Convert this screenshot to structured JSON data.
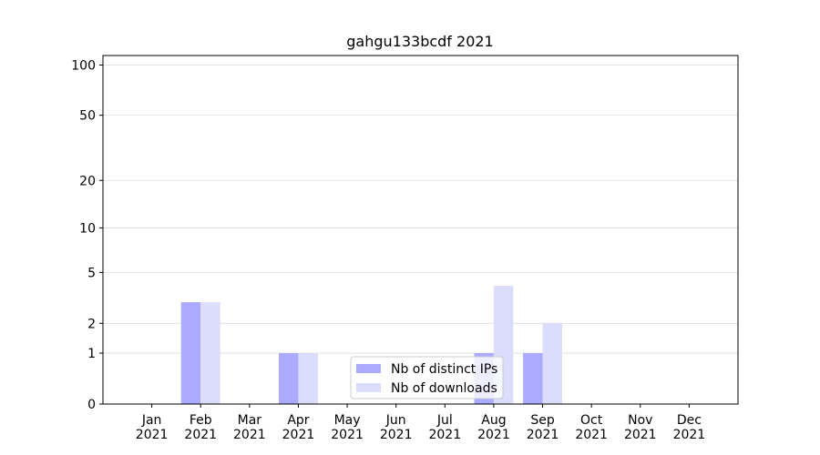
{
  "chart_data": {
    "type": "bar",
    "title": "gahgu133bcdf 2021",
    "categories": [
      "Jan 2021",
      "Feb 2021",
      "Mar 2021",
      "Apr 2021",
      "May 2021",
      "Jun 2021",
      "Jul 2021",
      "Aug 2021",
      "Sep 2021",
      "Oct 2021",
      "Nov 2021",
      "Dec 2021"
    ],
    "series": [
      {
        "name": "Nb of distinct IPs",
        "color": "#aaaaff",
        "values": [
          0,
          3,
          0,
          1,
          0,
          0,
          0,
          1,
          1,
          0,
          0,
          0
        ]
      },
      {
        "name": "Nb of downloads",
        "color": "#dcdcfc",
        "values": [
          0,
          3,
          0,
          1,
          0,
          0,
          0,
          4,
          2,
          0,
          0,
          0
        ]
      }
    ],
    "yscale": "log1p",
    "ylim": [
      0,
      114
    ],
    "yticks": [
      0,
      1,
      2,
      5,
      10,
      20,
      50,
      100
    ],
    "grid": true,
    "legend": "lower center"
  }
}
